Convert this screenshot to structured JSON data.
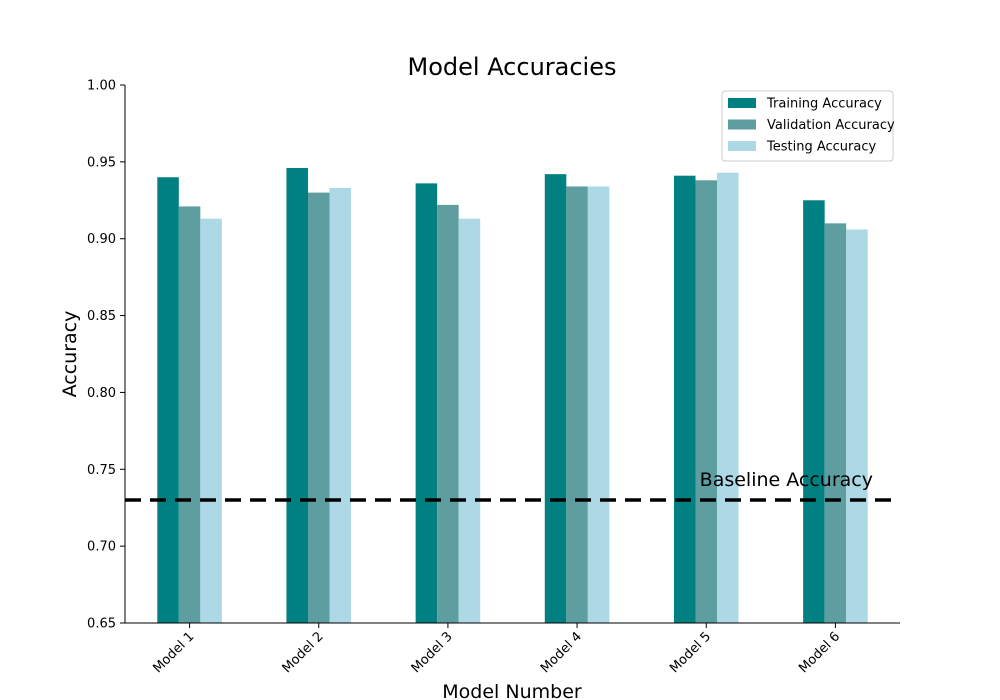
{
  "chart_data": {
    "type": "bar",
    "title": "Model Accuracies",
    "xlabel": "Model Number",
    "ylabel": "Accuracy",
    "categories": [
      "Model 1",
      "Model 2",
      "Model 3",
      "Model 4",
      "Model 5",
      "Model 6"
    ],
    "series": [
      {
        "name": "Training Accuracy",
        "color": "#008080",
        "values": [
          0.94,
          0.946,
          0.936,
          0.942,
          0.941,
          0.925
        ]
      },
      {
        "name": "Validation Accuracy",
        "color": "#5f9ea0",
        "values": [
          0.921,
          0.93,
          0.922,
          0.934,
          0.938,
          0.91
        ]
      },
      {
        "name": "Testing Accuracy",
        "color": "#add8e6",
        "values": [
          0.913,
          0.933,
          0.913,
          0.934,
          0.943,
          0.906
        ]
      }
    ],
    "ylim": [
      0.65,
      1.0
    ],
    "yticks": [
      "0.65",
      "0.70",
      "0.75",
      "0.80",
      "0.85",
      "0.90",
      "0.95",
      "1.00"
    ],
    "baseline": {
      "value": 0.73,
      "label": "Baseline Accuracy",
      "color": "#000000"
    },
    "legend_position": "top-right",
    "grid": false
  }
}
